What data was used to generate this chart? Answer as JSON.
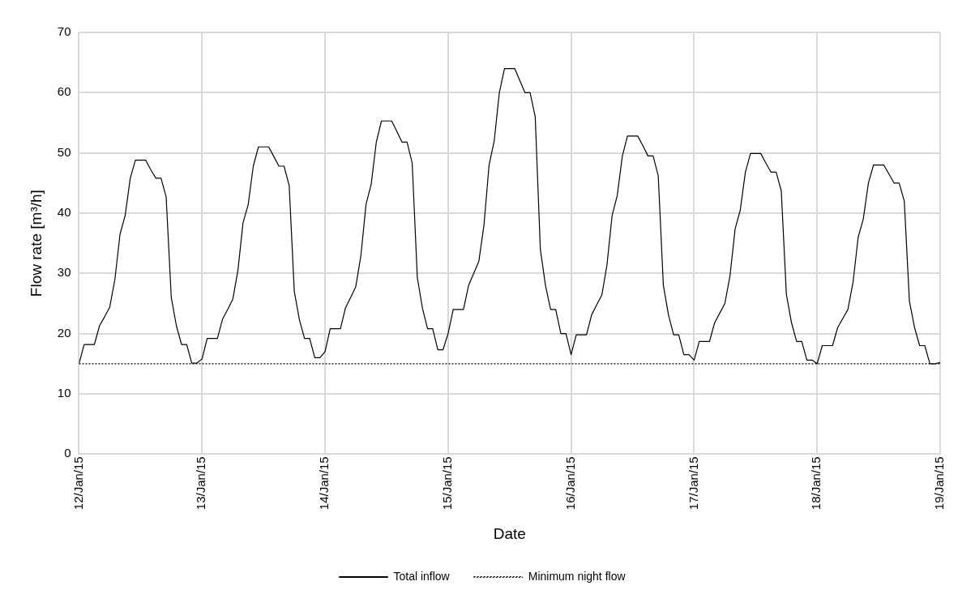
{
  "chart_data": {
    "type": "line",
    "xlabel": "Date",
    "ylabel": "Flow rate [m³/h]",
    "x": [
      "--01-12T00:00",
      "--01-12T01:00",
      "--01-12T02:00",
      "--01-12T03:00",
      "--01-12T04:00",
      "--01-12T05:00",
      "--01-12T06:00",
      "--01-12T07:00",
      "--01-12T08:00",
      "--01-12T09:00",
      "--01-12T10:00",
      "--01-12T11:00",
      "--01-12T12:00",
      "--01-12T13:00",
      "--01-12T14:00",
      "--01-12T15:00",
      "--01-12T16:00",
      "--01-12T17:00",
      "--01-12T18:00",
      "--01-12T19:00",
      "--01-12T20:00",
      "--01-12T21:00",
      "--01-12T22:00",
      "--01-12T23:00",
      "--01-13T00:00",
      "--01-13T01:00",
      "--01-13T02:00",
      "--01-13T03:00",
      "--01-13T04:00",
      "--01-13T05:00",
      "--01-13T06:00",
      "--01-13T07:00",
      "--01-13T08:00",
      "--01-13T09:00",
      "--01-13T10:00",
      "--01-13T11:00",
      "--01-13T12:00",
      "--01-13T13:00",
      "--01-13T14:00",
      "--01-13T15:00",
      "--01-13T16:00",
      "--01-13T17:00",
      "--01-13T18:00",
      "--01-13T19:00",
      "--01-13T20:00",
      "--01-13T21:00",
      "--01-13T22:00",
      "--01-13T23:00",
      "--01-14T00:00",
      "--01-14T01:00",
      "--01-14T02:00",
      "--01-14T03:00",
      "--01-14T04:00",
      "--01-14T05:00",
      "--01-14T06:00",
      "--01-14T07:00",
      "--01-14T08:00",
      "--01-14T09:00",
      "--01-14T10:00",
      "--01-14T11:00",
      "--01-14T12:00",
      "--01-14T13:00",
      "--01-14T14:00",
      "--01-14T15:00",
      "--01-14T16:00",
      "--01-14T17:00",
      "--01-14T18:00",
      "--01-14T19:00",
      "--01-14T20:00",
      "--01-14T21:00",
      "--01-14T22:00",
      "--01-14T23:00",
      "--01-15T00:00",
      "--01-15T01:00",
      "--01-15T02:00",
      "--01-15T03:00",
      "--01-15T04:00",
      "--01-15T05:00",
      "--01-15T06:00",
      "--01-15T07:00",
      "--01-15T08:00",
      "--01-15T09:00",
      "--01-15T10:00",
      "--01-15T11:00",
      "--01-15T12:00",
      "--01-15T13:00",
      "--01-15T14:00",
      "--01-15T15:00",
      "--01-15T16:00",
      "--01-15T17:00",
      "--01-15T18:00",
      "--01-15T19:00",
      "--01-15T20:00",
      "--01-15T21:00",
      "--01-15T22:00",
      "--01-15T23:00",
      "--01-16T00:00",
      "--01-16T01:00",
      "--01-16T02:00",
      "--01-16T03:00",
      "--01-16T04:00",
      "--01-16T05:00",
      "--01-16T06:00",
      "--01-16T07:00",
      "--01-16T08:00",
      "--01-16T09:00",
      "--01-16T10:00",
      "--01-16T11:00",
      "--01-16T12:00",
      "--01-16T13:00",
      "--01-16T14:00",
      "--01-16T15:00",
      "--01-16T16:00",
      "--01-16T17:00",
      "--01-16T18:00",
      "--01-16T19:00",
      "--01-16T20:00",
      "--01-16T21:00",
      "--01-16T22:00",
      "--01-16T23:00",
      "--01-17T00:00",
      "--01-17T01:00",
      "--01-17T02:00",
      "--01-17T03:00",
      "--01-17T04:00",
      "--01-17T05:00",
      "--01-17T06:00",
      "--01-17T07:00",
      "--01-17T08:00",
      "--01-17T09:00",
      "--01-17T10:00",
      "--01-17T11:00",
      "--01-17T12:00",
      "--01-17T13:00",
      "--01-17T14:00",
      "--01-17T15:00",
      "--01-17T16:00",
      "--01-17T17:00",
      "--01-17T18:00",
      "--01-17T19:00",
      "--01-17T20:00",
      "--01-17T21:00",
      "--01-17T22:00",
      "--01-17T23:00",
      "--01-18T00:00",
      "--01-18T01:00",
      "--01-18T02:00",
      "--01-18T03:00",
      "--01-18T04:00",
      "--01-18T05:00",
      "--01-18T06:00",
      "--01-18T07:00",
      "--01-18T08:00",
      "--01-18T09:00",
      "--01-18T10:00",
      "--01-18T11:00",
      "--01-18T12:00",
      "--01-18T13:00",
      "--01-18T14:00",
      "--01-18T15:00",
      "--01-18T16:00",
      "--01-18T17:00",
      "--01-18T18:00",
      "--01-18T19:00",
      "--01-18T20:00",
      "--01-18T21:00",
      "--01-18T22:00",
      "--01-18T23:00",
      "--01-19T00:00"
    ],
    "series": [
      {
        "name": "Total inflow",
        "color": "#000000",
        "values": [
          15.0,
          18.2,
          18.2,
          18.2,
          21.3,
          22.8,
          24.4,
          29.0,
          36.5,
          39.6,
          45.8,
          48.8,
          48.8,
          48.8,
          47.2,
          45.8,
          45.8,
          42.7,
          26.0,
          21.3,
          18.2,
          18.2,
          15.1,
          15.1,
          15.8,
          19.2,
          19.2,
          19.2,
          22.4,
          24.0,
          25.7,
          30.5,
          38.4,
          41.4,
          47.8,
          51.0,
          51.0,
          51.0,
          49.4,
          47.8,
          47.8,
          44.6,
          27.0,
          22.3,
          19.2,
          19.2,
          16.0,
          16.0,
          17.0,
          20.8,
          20.8,
          20.8,
          24.3,
          26.0,
          27.8,
          33.0,
          41.5,
          44.8,
          51.8,
          55.3,
          55.3,
          55.3,
          53.6,
          51.8,
          51.8,
          48.3,
          29.3,
          24.2,
          20.8,
          20.8,
          17.3,
          17.3,
          20.0,
          24.0,
          24.0,
          24.0,
          28.0,
          30.0,
          32.0,
          38.0,
          48.0,
          52.0,
          60.0,
          64.0,
          64.0,
          64.0,
          62.0,
          60.0,
          60.0,
          56.0,
          34.0,
          28.0,
          24.0,
          24.0,
          20.0,
          20.0,
          16.5,
          19.8,
          19.8,
          19.8,
          23.1,
          24.8,
          26.4,
          31.4,
          39.6,
          42.9,
          49.5,
          52.8,
          52.8,
          52.8,
          51.2,
          49.5,
          49.5,
          46.2,
          28.0,
          23.1,
          19.8,
          19.8,
          16.5,
          16.5,
          15.6,
          18.7,
          18.7,
          18.7,
          21.8,
          23.4,
          25.0,
          29.6,
          37.4,
          40.5,
          46.8,
          49.9,
          49.9,
          49.9,
          48.3,
          46.8,
          46.8,
          43.7,
          26.5,
          21.8,
          18.7,
          18.7,
          15.6,
          15.6,
          15.0,
          18.0,
          18.0,
          18.0,
          21.0,
          22.5,
          24.0,
          28.5,
          36.0,
          39.0,
          45.0,
          48.0,
          48.0,
          48.0,
          46.5,
          45.0,
          45.0,
          42.0,
          25.4,
          21.0,
          18.0,
          18.0,
          15.0,
          15.0,
          15.2
        ]
      }
    ],
    "ref_lines": [
      {
        "axis": "y",
        "value": 15,
        "label": "Minimum night flow",
        "color": "#000000",
        "line_style": "dotted"
      }
    ],
    "xlim": [
      "--01-12",
      "--01-19"
    ],
    "xticks": [
      {
        "value": "--01-12",
        "label": "12/Jan/15"
      },
      {
        "value": "--01-13",
        "label": "13/Jan/15"
      },
      {
        "value": "--01-14",
        "label": "14/Jan/15"
      },
      {
        "value": "--01-15",
        "label": "15/Jan/15"
      },
      {
        "value": "--01-16",
        "label": "16/Jan/15"
      },
      {
        "value": "--01-17",
        "label": "17/Jan/15"
      },
      {
        "value": "--01-18",
        "label": "18/Jan/15"
      },
      {
        "value": "--01-19",
        "label": "19/Jan/15"
      }
    ],
    "ylim": [
      0,
      70
    ],
    "yticks": [
      0,
      10,
      20,
      30,
      40,
      50,
      60,
      70
    ],
    "grid": true,
    "legend": "bottom",
    "marker": "none",
    "line_style": "solid"
  }
}
